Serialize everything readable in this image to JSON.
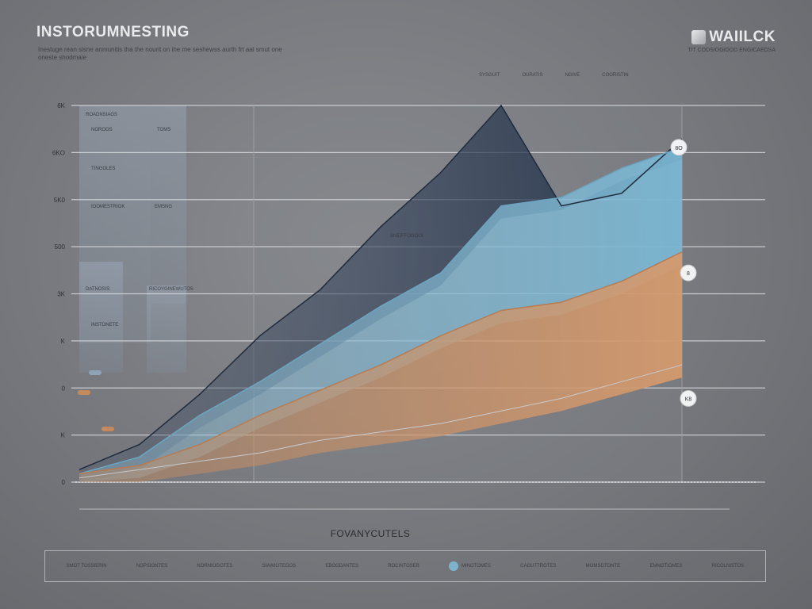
{
  "header": {
    "title": "INSTORUMNESTING",
    "subtitle": "Inestuge rean sisne anmunitis tha the nourit on ihe me seshewss aurth frt aal smut one oneste shodmaie",
    "brand_name": "WAIILCK",
    "brand_tagline": "TIT CODSIOGIDOD ENGICAEDSA",
    "nav": [
      "SYSGUIT",
      "OURATIS",
      "NGIVE",
      "COORISTIN"
    ]
  },
  "colors": {
    "background": "#7a7c81",
    "navy": "#2e3c52",
    "sky": "#7fb3cc",
    "copper": "#c48a5e",
    "gridline": "#d4d6da"
  },
  "chart_data": {
    "type": "area",
    "title": "INSTORUMNESTING",
    "xlabel": "FOVANYCUTELS",
    "ylabel": "",
    "y_tick_labels": [
      "6K",
      "6KO",
      "5K0",
      "500",
      "3K",
      "K",
      "0",
      "K",
      "0"
    ],
    "side_labels": [
      "ROADNSIAGS",
      "NOROOS",
      "TOMS",
      "TINGOLES",
      "IOOMESTRIOK",
      "EMSNG",
      "DATNOSIS",
      "RICOYGINEWUTOS",
      "INSTONETE"
    ],
    "point_annotations": [
      {
        "label": "8O",
        "y": 8
      },
      {
        "label": "8",
        "y": 5
      },
      {
        "label": "K8",
        "y": 2
      }
    ],
    "inline_label": "SNEIFFOGOOL",
    "x": [
      0,
      1,
      2,
      3,
      4,
      5,
      6,
      7,
      8,
      9,
      10
    ],
    "ylim": [
      0,
      9
    ],
    "series": [
      {
        "values": [
          0.3,
          0.9,
          2.1,
          3.5,
          4.6,
          6.1,
          7.4,
          9.0,
          6.6,
          6.9,
          8.2
        ]
      },
      {
        "values": [
          0.2,
          0.6,
          1.6,
          2.4,
          3.3,
          4.2,
          5.0,
          6.6,
          6.8,
          7.5,
          8.0
        ]
      },
      {
        "values": [
          0.2,
          0.4,
          0.9,
          1.6,
          2.2,
          2.8,
          3.5,
          4.1,
          4.3,
          4.8,
          5.5
        ]
      },
      {
        "values": [
          0.1,
          0.3,
          0.5,
          0.7,
          1.0,
          1.2,
          1.4,
          1.7,
          2.0,
          2.4,
          2.8
        ]
      }
    ],
    "grid": true,
    "legend_position": "bottom"
  },
  "legend": [
    {
      "label": "SMOT TOSSIERIN"
    },
    {
      "label": "NOPSIONTES"
    },
    {
      "label": "NORNIOGOTES"
    },
    {
      "label": "SIAWIOTEGOS"
    },
    {
      "label": "EBOGDANTES"
    },
    {
      "label": "ROCINTOSEB"
    },
    {
      "label": "MINOTOMES"
    },
    {
      "label": "CAOUTTROTES"
    },
    {
      "label": "MOMSGTONTE"
    },
    {
      "label": "EMNOTIOMES"
    },
    {
      "label": "RICOLNISTOS"
    }
  ]
}
